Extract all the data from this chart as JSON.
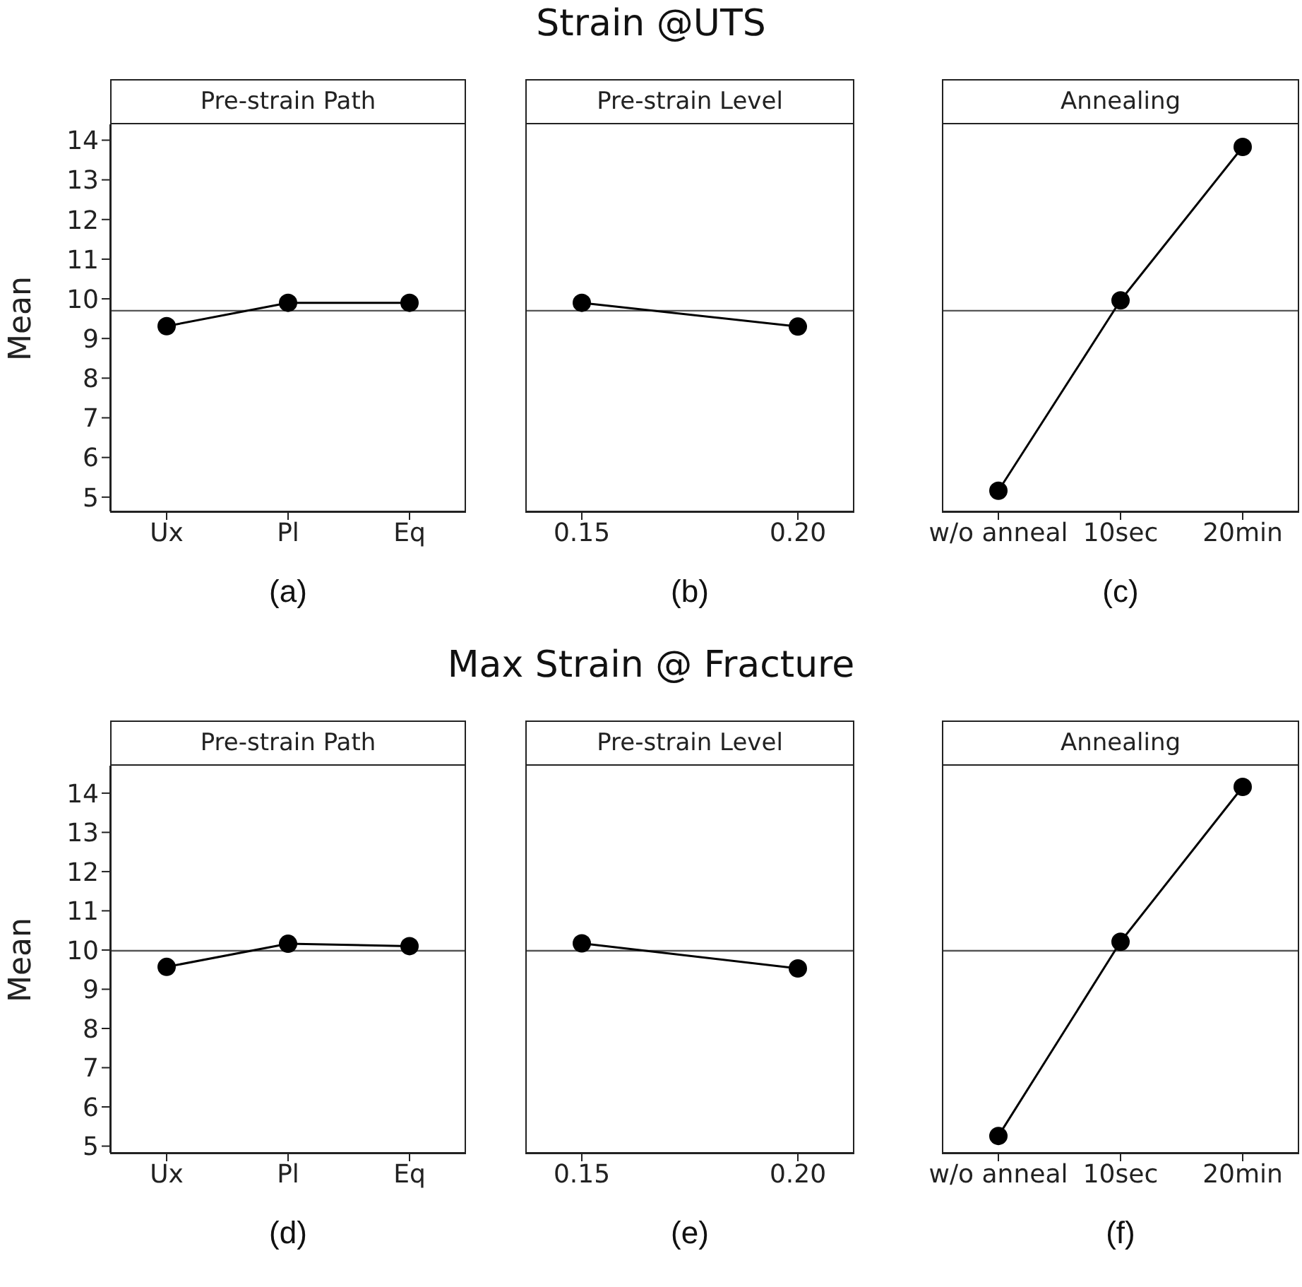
{
  "chart_data": [
    {
      "type": "line",
      "title": "Pre-strain Path",
      "xlabel": "(a)",
      "ylabel": "Mean",
      "annotations": [
        "Strain @UTS"
      ],
      "categories": [
        "Ux",
        "Pl",
        "Eq"
      ],
      "series": [
        {
          "color": "#000000",
          "values": [
            9.31,
            9.9,
            9.9
          ]
        }
      ],
      "ylim": [
        4.64,
        14.4
      ],
      "yticks": [
        5,
        6,
        7,
        8,
        9,
        10,
        11,
        12,
        13,
        14
      ],
      "ref_lines": [
        {
          "axis": "y",
          "value": 9.7,
          "color": "#555555"
        }
      ],
      "marker": "circle",
      "grid": false,
      "legend": false
    },
    {
      "type": "line",
      "title": "Pre-strain Level",
      "xlabel": "(b)",
      "categories": [
        "0.15",
        "0.20"
      ],
      "series": [
        {
          "color": "#000000",
          "values": [
            9.9,
            9.3
          ]
        }
      ],
      "ylim": [
        4.64,
        14.4
      ],
      "yticks": [
        5,
        6,
        7,
        8,
        9,
        10,
        11,
        12,
        13,
        14
      ],
      "tick_labels": "x",
      "ref_lines": [
        {
          "axis": "y",
          "value": 9.7,
          "color": "#555555"
        }
      ],
      "marker": "circle",
      "grid": false,
      "legend": false
    },
    {
      "type": "line",
      "title": "Annealing",
      "xlabel": "(c)",
      "categories": [
        "w/o anneal",
        "10sec",
        "20min"
      ],
      "series": [
        {
          "color": "#000000",
          "values": [
            5.16,
            9.96,
            13.83
          ]
        }
      ],
      "ylim": [
        4.64,
        14.4
      ],
      "yticks": [
        5,
        6,
        7,
        8,
        9,
        10,
        11,
        12,
        13,
        14
      ],
      "tick_labels": "x",
      "ref_lines": [
        {
          "axis": "y",
          "value": 9.7,
          "color": "#555555"
        }
      ],
      "marker": "circle",
      "grid": false,
      "legend": false
    },
    {
      "type": "line",
      "title": "Pre-strain Path",
      "xlabel": "(d)",
      "ylabel": "Mean",
      "annotations": [
        "Max Strain @ Fracture"
      ],
      "categories": [
        "Ux",
        "Pl",
        "Eq"
      ],
      "series": [
        {
          "color": "#000000",
          "values": [
            9.57,
            10.16,
            10.1
          ]
        }
      ],
      "ylim": [
        4.83,
        14.7
      ],
      "yticks": [
        5,
        6,
        7,
        8,
        9,
        10,
        11,
        12,
        13,
        14
      ],
      "ref_lines": [
        {
          "axis": "y",
          "value": 9.98,
          "color": "#555555"
        }
      ],
      "marker": "circle",
      "grid": false,
      "legend": false
    },
    {
      "type": "line",
      "title": "Pre-strain Level",
      "xlabel": "(e)",
      "categories": [
        "0.15",
        "0.20"
      ],
      "series": [
        {
          "color": "#000000",
          "values": [
            10.17,
            9.53
          ]
        }
      ],
      "ylim": [
        4.83,
        14.7
      ],
      "yticks": [
        5,
        6,
        7,
        8,
        9,
        10,
        11,
        12,
        13,
        14
      ],
      "tick_labels": "x",
      "ref_lines": [
        {
          "axis": "y",
          "value": 9.98,
          "color": "#555555"
        }
      ],
      "marker": "circle",
      "grid": false,
      "legend": false
    },
    {
      "type": "line",
      "title": "Annealing",
      "xlabel": "(f)",
      "categories": [
        "w/o anneal",
        "10sec",
        "20min"
      ],
      "series": [
        {
          "color": "#000000",
          "values": [
            5.26,
            10.21,
            14.16
          ]
        }
      ],
      "ylim": [
        4.83,
        14.7
      ],
      "yticks": [
        5,
        6,
        7,
        8,
        9,
        10,
        11,
        12,
        13,
        14
      ],
      "tick_labels": "x",
      "ref_lines": [
        {
          "axis": "y",
          "value": 9.98,
          "color": "#555555"
        }
      ],
      "marker": "circle",
      "grid": false,
      "legend": false
    }
  ]
}
